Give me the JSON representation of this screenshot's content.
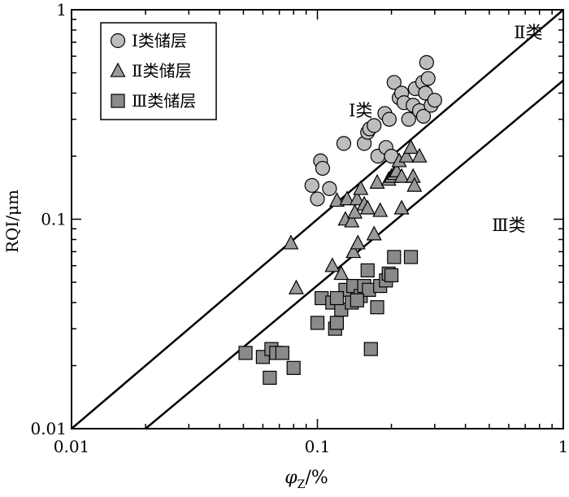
{
  "chart_data": {
    "type": "scatter",
    "x_scale": "log",
    "y_scale": "log",
    "xlim": [
      0.01,
      1
    ],
    "ylim": [
      0.01,
      1
    ],
    "xlabel": "φZ/%",
    "xlabel_main": "φ",
    "xlabel_sub": "Z",
    "xlabel_unit": "/%",
    "ylabel": "RQI/μm",
    "x_ticks": [
      "0.01",
      "0.1",
      "1"
    ],
    "y_ticks": [
      "0.01",
      "0.1",
      "1"
    ],
    "legend_position": "top-left",
    "colors": {
      "class1": "#bdbdbd",
      "class2": "#9a9a9a",
      "class3": "#8a8a8a",
      "stroke": "#000000"
    },
    "series": [
      {
        "name": "Ⅰ类储层",
        "marker": "circle",
        "points": [
          [
            0.095,
            0.145
          ],
          [
            0.1,
            0.125
          ],
          [
            0.103,
            0.19
          ],
          [
            0.105,
            0.175
          ],
          [
            0.112,
            0.14
          ],
          [
            0.128,
            0.23
          ],
          [
            0.155,
            0.23
          ],
          [
            0.16,
            0.26
          ],
          [
            0.163,
            0.27
          ],
          [
            0.17,
            0.28
          ],
          [
            0.176,
            0.2
          ],
          [
            0.188,
            0.32
          ],
          [
            0.19,
            0.22
          ],
          [
            0.196,
            0.3
          ],
          [
            0.2,
            0.2
          ],
          [
            0.205,
            0.45
          ],
          [
            0.215,
            0.38
          ],
          [
            0.22,
            0.4
          ],
          [
            0.225,
            0.36
          ],
          [
            0.235,
            0.3
          ],
          [
            0.245,
            0.35
          ],
          [
            0.25,
            0.42
          ],
          [
            0.26,
            0.33
          ],
          [
            0.268,
            0.45
          ],
          [
            0.27,
            0.31
          ],
          [
            0.275,
            0.4
          ],
          [
            0.278,
            0.56
          ],
          [
            0.282,
            0.47
          ],
          [
            0.29,
            0.35
          ],
          [
            0.3,
            0.37
          ]
        ]
      },
      {
        "name": "Ⅱ类储层",
        "marker": "triangle",
        "points": [
          [
            0.078,
            0.077
          ],
          [
            0.082,
            0.047
          ],
          [
            0.115,
            0.06
          ],
          [
            0.12,
            0.123
          ],
          [
            0.125,
            0.055
          ],
          [
            0.13,
            0.1
          ],
          [
            0.132,
            0.125
          ],
          [
            0.138,
            0.098
          ],
          [
            0.14,
            0.07
          ],
          [
            0.142,
            0.108
          ],
          [
            0.145,
            0.125
          ],
          [
            0.146,
            0.077
          ],
          [
            0.15,
            0.14
          ],
          [
            0.155,
            0.118
          ],
          [
            0.16,
            0.113
          ],
          [
            0.17,
            0.085
          ],
          [
            0.175,
            0.15
          ],
          [
            0.18,
            0.11
          ],
          [
            0.195,
            0.155
          ],
          [
            0.2,
            0.16
          ],
          [
            0.205,
            0.165
          ],
          [
            0.21,
            0.17
          ],
          [
            0.215,
            0.19
          ],
          [
            0.22,
            0.16
          ],
          [
            0.22,
            0.113
          ],
          [
            0.23,
            0.2
          ],
          [
            0.24,
            0.22
          ],
          [
            0.245,
            0.16
          ],
          [
            0.248,
            0.145
          ],
          [
            0.26,
            0.2
          ]
        ]
      },
      {
        "name": "Ⅲ类储层",
        "marker": "square",
        "points": [
          [
            0.051,
            0.023
          ],
          [
            0.06,
            0.022
          ],
          [
            0.064,
            0.0175
          ],
          [
            0.065,
            0.024
          ],
          [
            0.068,
            0.023
          ],
          [
            0.072,
            0.023
          ],
          [
            0.08,
            0.0195
          ],
          [
            0.1,
            0.032
          ],
          [
            0.104,
            0.042
          ],
          [
            0.115,
            0.04
          ],
          [
            0.118,
            0.03
          ],
          [
            0.12,
            0.032
          ],
          [
            0.125,
            0.037
          ],
          [
            0.13,
            0.046
          ],
          [
            0.138,
            0.04
          ],
          [
            0.14,
            0.048
          ],
          [
            0.15,
            0.043
          ],
          [
            0.155,
            0.048
          ],
          [
            0.16,
            0.057
          ],
          [
            0.162,
            0.046
          ],
          [
            0.165,
            0.024
          ],
          [
            0.175,
            0.038
          ],
          [
            0.18,
            0.048
          ],
          [
            0.19,
            0.051
          ],
          [
            0.195,
            0.055
          ],
          [
            0.2,
            0.054
          ],
          [
            0.205,
            0.066
          ],
          [
            0.24,
            0.066
          ],
          [
            0.145,
            0.041
          ],
          [
            0.12,
            0.042
          ]
        ]
      }
    ],
    "boundary_lines": [
      {
        "name": "Ⅰ-Ⅱ boundary",
        "points": [
          [
            0.01,
            0.01
          ],
          [
            1,
            1
          ]
        ]
      },
      {
        "name": "Ⅱ-Ⅲ boundary",
        "points": [
          [
            0.02,
            0.01
          ],
          [
            1,
            0.46
          ]
        ]
      }
    ],
    "annotations": [
      {
        "text": "Ⅰ类",
        "x": 0.15,
        "y": 0.31
      },
      {
        "text": "Ⅱ类",
        "x": 0.72,
        "y": 0.73
      },
      {
        "text": "Ⅲ类",
        "x": 0.6,
        "y": 0.088
      }
    ]
  }
}
